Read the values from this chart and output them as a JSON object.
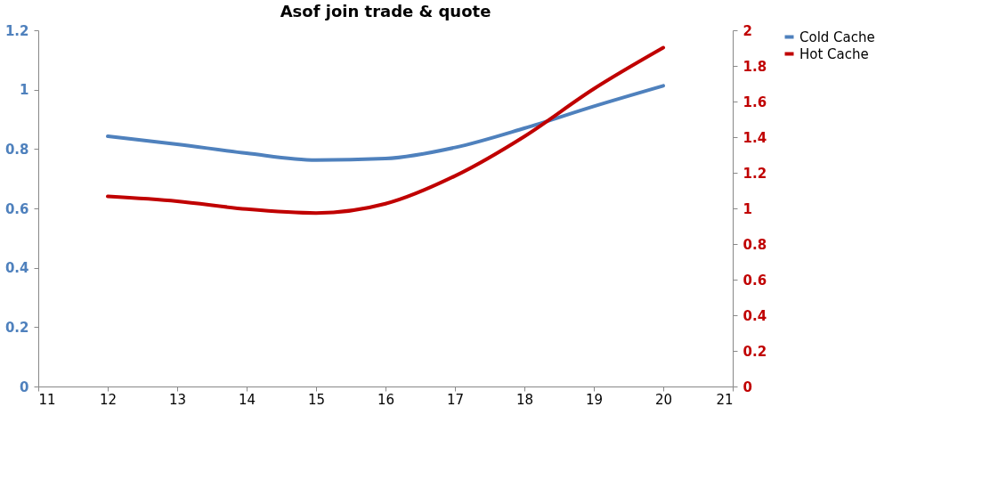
{
  "chart_data": {
    "type": "line",
    "title": "Asof join trade & quote",
    "x": [
      12,
      13,
      14,
      15,
      16,
      17,
      18,
      19,
      20
    ],
    "series": [
      {
        "name": "Cold Cache",
        "color": "#4f81bd",
        "values": [
          0.843,
          0.816,
          0.786,
          0.763,
          0.768,
          0.805,
          0.87,
          0.944,
          1.013
        ]
      },
      {
        "name": "Hot Cache",
        "color": "#c00000",
        "axis": "y2",
        "values": [
          1.067,
          1.04,
          0.996,
          0.974,
          1.026,
          1.182,
          1.404,
          1.671,
          1.902
        ]
      }
    ],
    "xlim": [
      11,
      21
    ],
    "xticks": [
      11,
      12,
      13,
      14,
      15,
      16,
      17,
      18,
      19,
      20,
      21
    ],
    "ylim": [
      0,
      1.2
    ],
    "yticks": [
      0,
      0.2,
      0.4,
      0.6,
      0.8,
      1,
      1.2
    ],
    "y2lim": [
      0,
      2
    ],
    "y2ticks": [
      0,
      0.2,
      0.4,
      0.6,
      0.8,
      1,
      1.2,
      1.4,
      1.6,
      1.8,
      2
    ],
    "grid": false,
    "legend": "right",
    "marker": "none",
    "line_style": "solid"
  }
}
